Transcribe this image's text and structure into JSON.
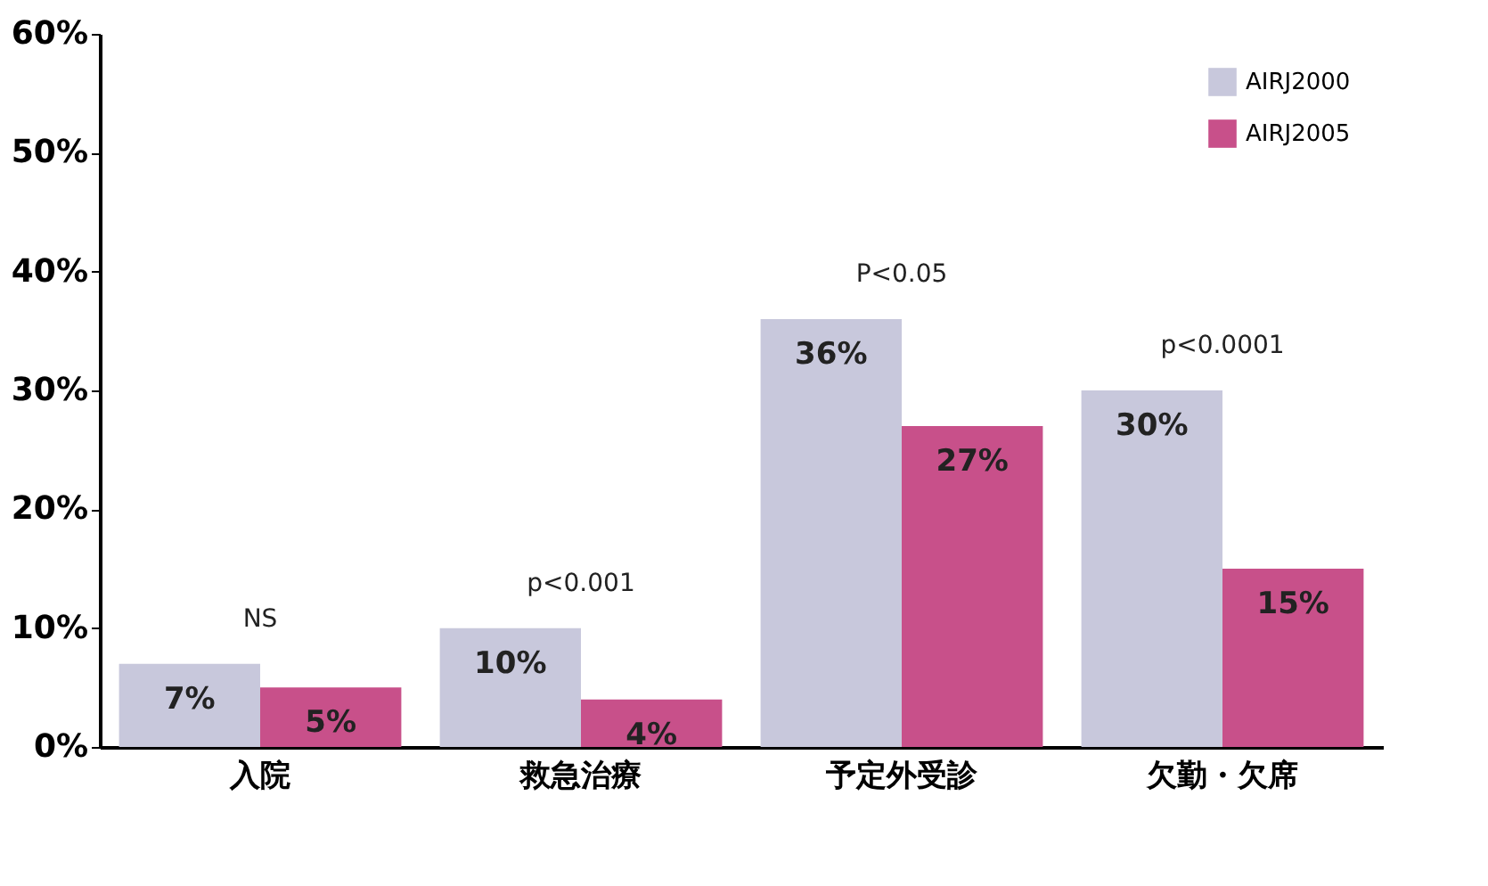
{
  "chart_data": {
    "type": "bar",
    "categories": [
      "入院",
      "救急治療",
      "予定外受診",
      "欠勤・欠席"
    ],
    "series": [
      {
        "name": "AIRJ2000",
        "color": "#c8c8dc",
        "values": [
          7,
          10,
          36,
          30
        ],
        "value_labels": [
          "7%",
          "10%",
          "36%",
          "30%"
        ]
      },
      {
        "name": "AIRJ2005",
        "color": "#c8508a",
        "values": [
          5,
          4,
          27,
          15
        ],
        "value_labels": [
          "5%",
          "4%",
          "27%",
          "15%"
        ]
      }
    ],
    "ylim": [
      0,
      60
    ],
    "yticks": [
      {
        "value": 0,
        "label": "0%"
      },
      {
        "value": 10,
        "label": "10%"
      },
      {
        "value": 20,
        "label": "20%"
      },
      {
        "value": 30,
        "label": "30%"
      },
      {
        "value": 40,
        "label": "40%"
      },
      {
        "value": 50,
        "label": "50%"
      },
      {
        "value": 60,
        "label": "60%"
      }
    ],
    "annotations": [
      "NS",
      "p<0.001",
      "P<0.05",
      "p<0.0001"
    ],
    "legend": "top right",
    "grid": false
  }
}
